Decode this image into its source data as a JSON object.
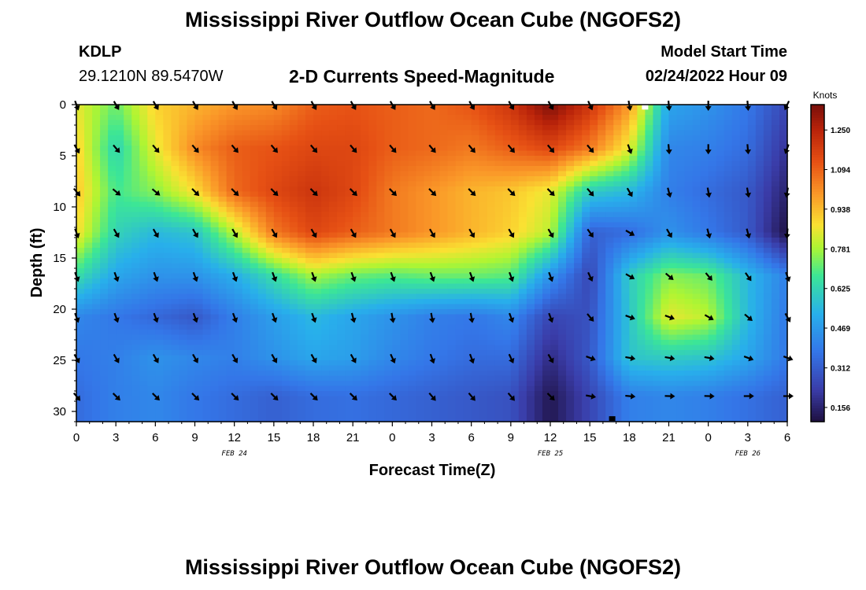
{
  "header": {
    "title": "Mississippi River Outflow Ocean Cube (NGOFS2)",
    "station": "KDLP",
    "coords": "29.1210N  89.5470W",
    "subtitle": "2-D Currents Speed-Magnitude",
    "model_start_label": "Model Start Time",
    "model_start_value": "02/24/2022 Hour 09"
  },
  "footer": {
    "title_repeat": "Mississippi River Outflow Ocean Cube (NGOFS2)"
  },
  "chart_data": {
    "type": "heatmap",
    "xlabel": "Forecast Time(Z)",
    "ylabel": "Depth (ft)",
    "x_range": [
      0,
      54
    ],
    "y_range": [
      0,
      31
    ],
    "y_inverted": true,
    "x_ticks": [
      0,
      3,
      6,
      9,
      12,
      15,
      18,
      21,
      24,
      27,
      30,
      33,
      36,
      39,
      42,
      45,
      48,
      51,
      54
    ],
    "x_tick_labels": [
      "0",
      "3",
      "6",
      "9",
      "12",
      "15",
      "18",
      "21",
      "0",
      "3",
      "6",
      "9",
      "12",
      "15",
      "18",
      "21",
      "0",
      "3",
      "6"
    ],
    "y_ticks": [
      0,
      5,
      10,
      15,
      20,
      25,
      30
    ],
    "y_tick_labels": [
      "0",
      "5",
      "10",
      "15",
      "20",
      "25",
      "30"
    ],
    "date_labels": [
      {
        "x": 12,
        "text": "FEB 24"
      },
      {
        "x": 36,
        "text": "FEB 25"
      },
      {
        "x": 51,
        "text": "FEB 26"
      }
    ],
    "colorbar": {
      "unit": "Knots",
      "min": 0.1,
      "max": 1.35,
      "ticks": [
        "1.250",
        "1.094",
        "0.938",
        "0.781",
        "0.625",
        "0.469",
        "0.312",
        "0.156"
      ]
    },
    "depths": [
      0,
      4.25,
      8.5,
      12.5,
      16.75,
      20.75,
      24.75,
      28.5
    ],
    "hours": [
      0,
      3,
      6,
      9,
      12,
      15,
      18,
      21,
      24,
      27,
      30,
      33,
      36,
      39,
      42,
      45,
      48,
      51,
      54
    ],
    "speed": [
      [
        0.85,
        0.72,
        0.9,
        0.95,
        1.0,
        1.02,
        1.1,
        1.12,
        1.1,
        1.08,
        1.12,
        1.2,
        1.35,
        1.2,
        1.0,
        0.5,
        0.45,
        0.38,
        0.25
      ],
      [
        0.9,
        0.62,
        0.85,
        1.02,
        1.1,
        1.12,
        1.15,
        1.15,
        1.1,
        1.08,
        1.05,
        1.1,
        1.15,
        1.05,
        0.85,
        0.42,
        0.4,
        0.35,
        0.2
      ],
      [
        0.92,
        0.68,
        0.75,
        0.88,
        1.08,
        1.15,
        1.2,
        1.15,
        1.05,
        1.0,
        0.95,
        0.92,
        0.85,
        0.6,
        0.55,
        0.4,
        0.35,
        0.3,
        0.15
      ],
      [
        0.88,
        0.62,
        0.55,
        0.58,
        0.8,
        1.05,
        1.15,
        1.1,
        1.05,
        1.0,
        0.95,
        0.9,
        0.8,
        0.32,
        0.35,
        0.45,
        0.38,
        0.3,
        0.1
      ],
      [
        0.65,
        0.5,
        0.45,
        0.45,
        0.52,
        0.65,
        0.78,
        0.72,
        0.7,
        0.72,
        0.72,
        0.7,
        0.45,
        0.25,
        0.6,
        0.75,
        0.72,
        0.55,
        0.4
      ],
      [
        0.42,
        0.38,
        0.34,
        0.3,
        0.4,
        0.48,
        0.55,
        0.5,
        0.45,
        0.4,
        0.38,
        0.42,
        0.25,
        0.28,
        0.58,
        0.85,
        0.8,
        0.55,
        0.38
      ],
      [
        0.38,
        0.4,
        0.45,
        0.42,
        0.4,
        0.45,
        0.5,
        0.48,
        0.42,
        0.38,
        0.35,
        0.35,
        0.18,
        0.3,
        0.58,
        0.6,
        0.58,
        0.5,
        0.38
      ],
      [
        0.35,
        0.4,
        0.42,
        0.38,
        0.35,
        0.32,
        0.35,
        0.36,
        0.34,
        0.32,
        0.3,
        0.28,
        0.12,
        0.25,
        0.4,
        0.42,
        0.4,
        0.36,
        0.32
      ]
    ],
    "direction_deg": [
      [
        160,
        150,
        150,
        150,
        150,
        150,
        150,
        150,
        150,
        150,
        150,
        150,
        150,
        155,
        170,
        175,
        180,
        175,
        205
      ],
      [
        150,
        140,
        140,
        140,
        140,
        140,
        140,
        140,
        140,
        140,
        140,
        140,
        140,
        140,
        160,
        175,
        180,
        175,
        200
      ],
      [
        140,
        130,
        130,
        135,
        135,
        135,
        135,
        135,
        135,
        135,
        135,
        135,
        135,
        140,
        150,
        165,
        170,
        170,
        190
      ],
      [
        160,
        150,
        150,
        150,
        150,
        150,
        150,
        150,
        150,
        150,
        150,
        150,
        150,
        145,
        120,
        150,
        165,
        165,
        185
      ],
      [
        160,
        160,
        160,
        160,
        160,
        160,
        160,
        160,
        160,
        160,
        160,
        160,
        160,
        155,
        120,
        130,
        140,
        145,
        160
      ],
      [
        160,
        160,
        160,
        160,
        160,
        160,
        160,
        165,
        170,
        170,
        170,
        160,
        160,
        140,
        110,
        110,
        120,
        130,
        150
      ],
      [
        150,
        150,
        150,
        150,
        150,
        150,
        150,
        150,
        155,
        160,
        160,
        155,
        150,
        110,
        100,
        100,
        100,
        110,
        110
      ],
      [
        140,
        135,
        135,
        135,
        135,
        135,
        135,
        135,
        135,
        140,
        140,
        140,
        135,
        100,
        95,
        92,
        92,
        90,
        90
      ]
    ],
    "markers": [
      {
        "x": 43.2,
        "y": 0.25,
        "color": "#ffffff"
      },
      {
        "x": 40.7,
        "y": 30.7,
        "color": "#000000"
      }
    ]
  }
}
